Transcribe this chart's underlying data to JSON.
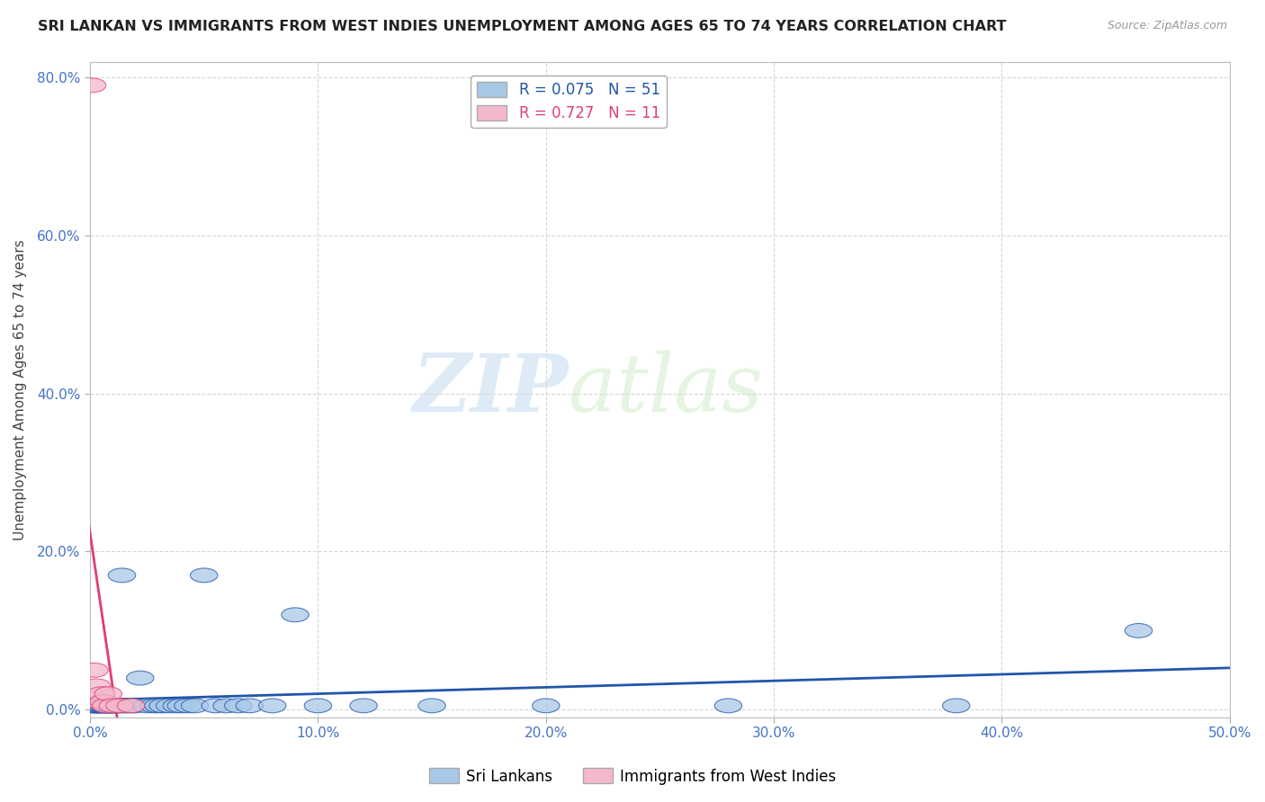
{
  "title": "SRI LANKAN VS IMMIGRANTS FROM WEST INDIES UNEMPLOYMENT AMONG AGES 65 TO 74 YEARS CORRELATION CHART",
  "source": "Source: ZipAtlas.com",
  "ylabel": "Unemployment Among Ages 65 to 74 years",
  "xlabel_ticks": [
    "0.0%",
    "10.0%",
    "20.0%",
    "30.0%",
    "40.0%",
    "50.0%"
  ],
  "ylabel_ticks": [
    "0.0%",
    "20.0%",
    "40.0%",
    "60.0%",
    "80.0%"
  ],
  "xlim": [
    0.0,
    0.5
  ],
  "ylim": [
    -0.01,
    0.82
  ],
  "sri_lankan_color": "#a8c8e8",
  "west_indies_color": "#f4b8cc",
  "sri_lankan_line_color": "#2255aa",
  "west_indies_line_color": "#e04070",
  "legend_sri_label": "Sri Lankans",
  "legend_wi_label": "Immigrants from West Indies",
  "R_sri": 0.075,
  "N_sri": 51,
  "R_wi": 0.727,
  "N_wi": 11,
  "watermark_zip": "ZIP",
  "watermark_atlas": "atlas",
  "background_color": "#ffffff",
  "sri_lankans_x": [
    0.001,
    0.002,
    0.002,
    0.003,
    0.003,
    0.004,
    0.004,
    0.005,
    0.005,
    0.006,
    0.006,
    0.007,
    0.007,
    0.008,
    0.008,
    0.009,
    0.009,
    0.01,
    0.01,
    0.011,
    0.012,
    0.013,
    0.014,
    0.015,
    0.016,
    0.018,
    0.02,
    0.022,
    0.025,
    0.028,
    0.03,
    0.032,
    0.035,
    0.038,
    0.04,
    0.043,
    0.046,
    0.05,
    0.055,
    0.06,
    0.065,
    0.07,
    0.08,
    0.09,
    0.1,
    0.12,
    0.15,
    0.2,
    0.28,
    0.38,
    0.46
  ],
  "sri_lankans_y": [
    0.005,
    0.005,
    0.005,
    0.005,
    0.005,
    0.005,
    0.005,
    0.005,
    0.005,
    0.005,
    0.005,
    0.005,
    0.005,
    0.005,
    0.005,
    0.005,
    0.005,
    0.005,
    0.005,
    0.005,
    0.005,
    0.005,
    0.17,
    0.005,
    0.005,
    0.005,
    0.005,
    0.04,
    0.005,
    0.005,
    0.005,
    0.005,
    0.005,
    0.005,
    0.005,
    0.005,
    0.005,
    0.17,
    0.005,
    0.005,
    0.005,
    0.005,
    0.005,
    0.12,
    0.005,
    0.005,
    0.005,
    0.005,
    0.005,
    0.005,
    0.1
  ],
  "west_indies_x": [
    0.001,
    0.002,
    0.003,
    0.004,
    0.005,
    0.006,
    0.007,
    0.008,
    0.01,
    0.013,
    0.018
  ],
  "west_indies_y": [
    0.79,
    0.05,
    0.03,
    0.01,
    0.02,
    0.01,
    0.005,
    0.02,
    0.005,
    0.005,
    0.005
  ]
}
